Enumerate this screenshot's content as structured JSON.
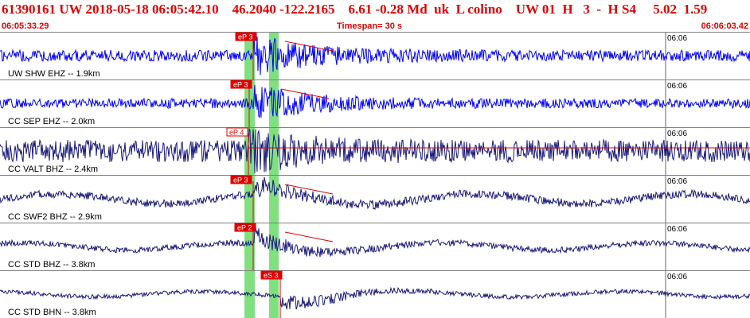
{
  "header": {
    "title": "61390161 UW 2018-05-18 06:05:42.10    46.2040 -122.2165    6.61 -0.28 Md  uk  L colino    UW 01  H   3  -  H S4     5.02  1.59",
    "start_time": "06:05:33.29",
    "timespan": "Timespan=  30 s",
    "end_time": "06:06:03.42"
  },
  "colors": {
    "header_text": "#e00000",
    "high_gain_trace": "#0000ff",
    "low_gain_trace": "#1a1a7a",
    "pick_box": "#e00000",
    "highlight": "#80e080",
    "divider": "#808080"
  },
  "traces": [
    {
      "label": "UW SHW EHZ -- 1.9km",
      "pick": "eP 3",
      "time_mark": "06:06",
      "color": "#0000ff"
    },
    {
      "label": "CC SEP EHZ -- 2.0km",
      "pick": "eP 3",
      "time_mark": "06:06",
      "color": "#0000ff"
    },
    {
      "label": "CC VALT BHZ -- 2.4km",
      "pick": "eP 4",
      "time_mark": "06:06",
      "color": "#1a1a7a"
    },
    {
      "label": "CC SWF2 BHZ -- 2.9km",
      "pick": "eP 3",
      "time_mark": "06:06",
      "color": "#1a1a7a"
    },
    {
      "label": "CC STD BHZ -- 3.8km",
      "pick": "eP 2",
      "time_mark": "06:06",
      "color": "#1a1a7a"
    },
    {
      "label": "CC STD BHN -- 3.8km",
      "pick": "eS 3",
      "time_mark": "06:06",
      "color": "#1a1a7a"
    }
  ]
}
